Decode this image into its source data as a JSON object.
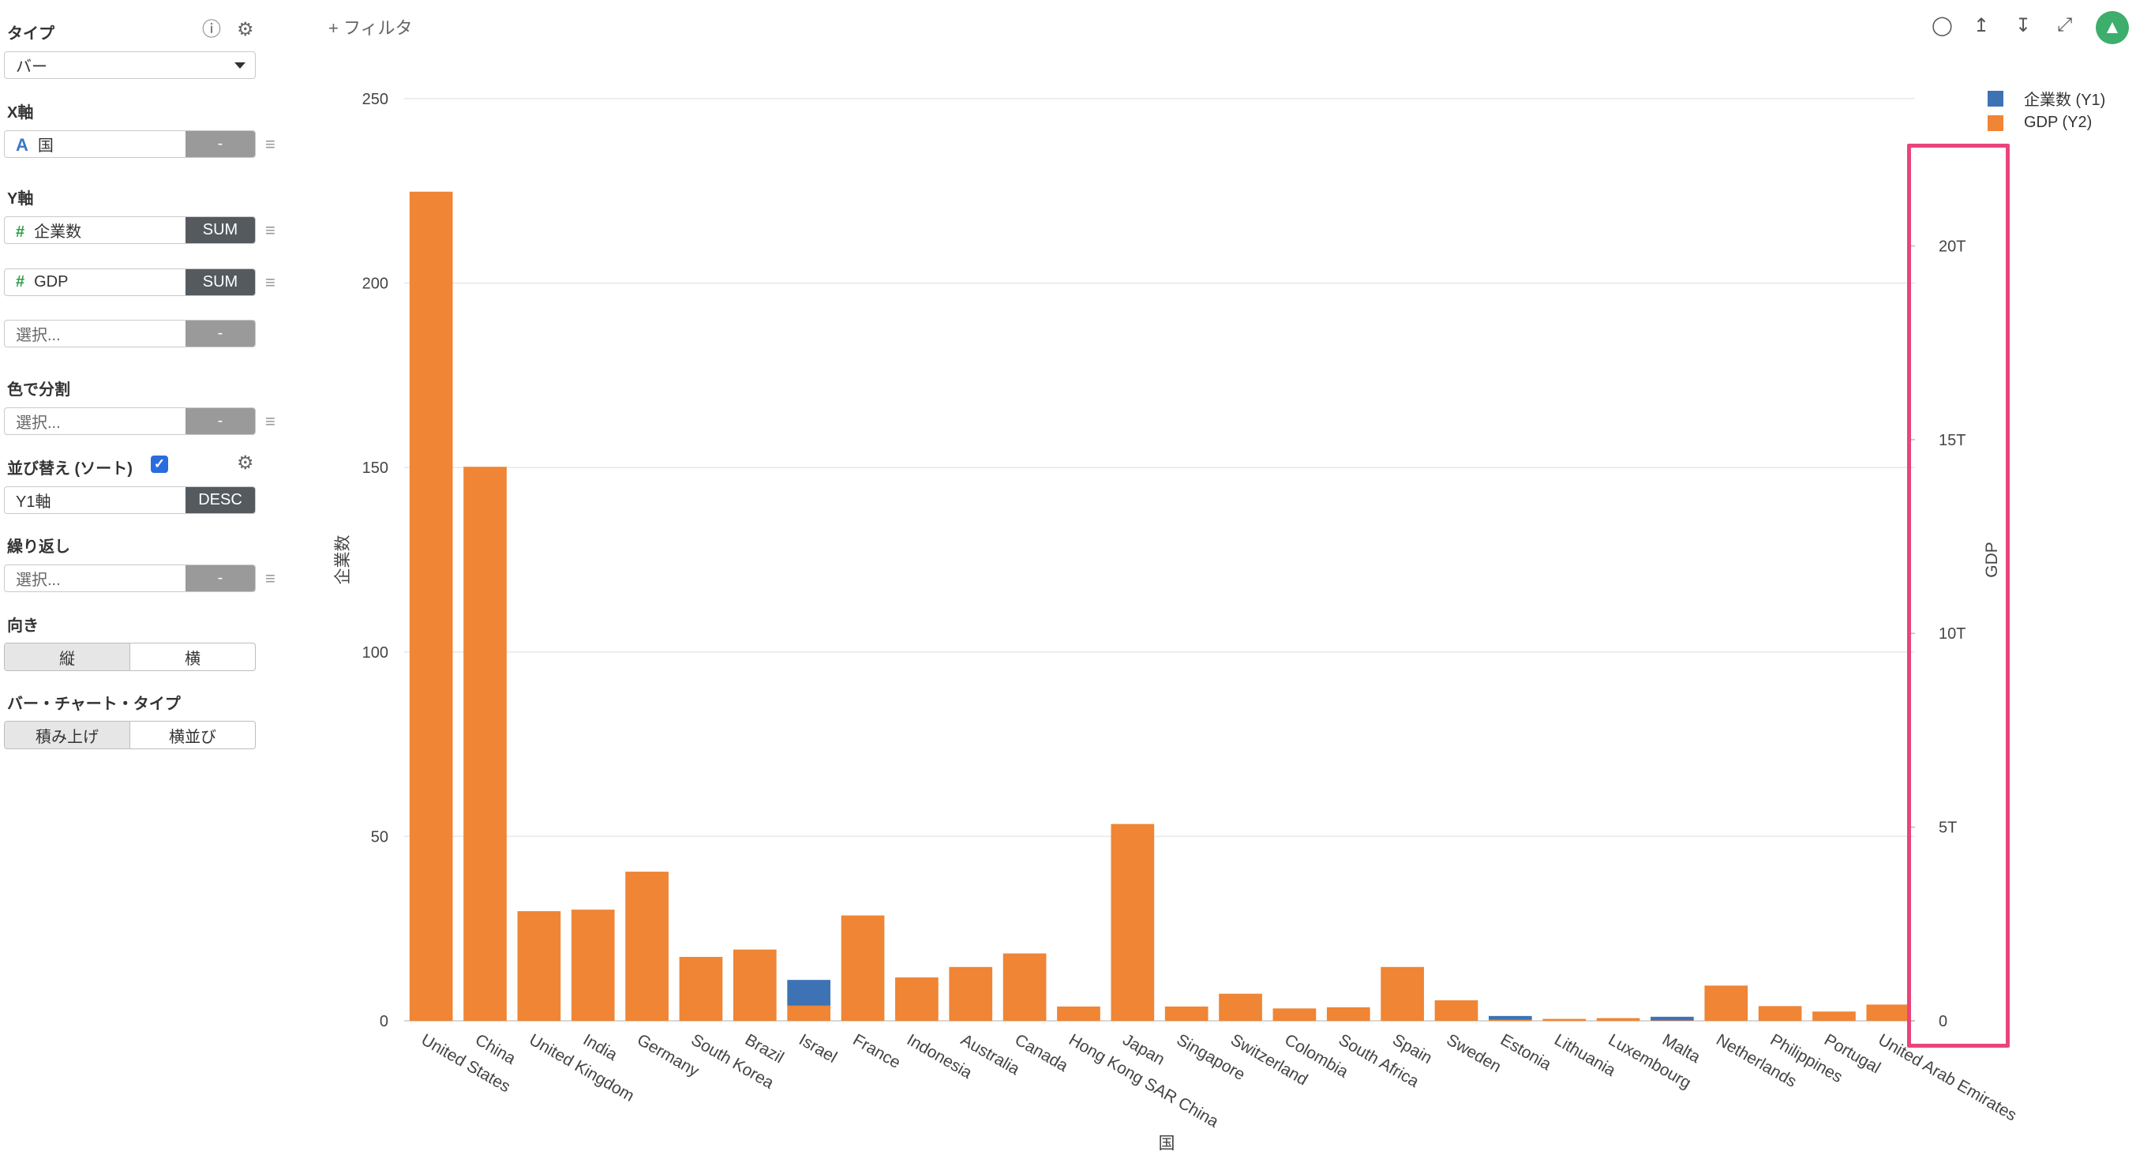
{
  "panel": {
    "type": {
      "label": "タイプ",
      "value": "バー"
    },
    "xaxis": {
      "label": "X軸",
      "field": "国",
      "agg": "-"
    },
    "yaxis": {
      "label": "Y軸",
      "fields": [
        {
          "name": "企業数",
          "agg": "SUM"
        },
        {
          "name": "GDP",
          "agg": "SUM"
        }
      ],
      "add_placeholder": "選択...",
      "add_agg": "-"
    },
    "color_split": {
      "label": "色で分割",
      "placeholder": "選択...",
      "agg": "-"
    },
    "sort": {
      "label": "並び替え (ソート)",
      "checked": true,
      "field": "Y1軸",
      "order": "DESC"
    },
    "repeat": {
      "label": "繰り返し",
      "placeholder": "選択...",
      "agg": "-"
    },
    "orientation": {
      "label": "向き",
      "options": [
        "縦",
        "横"
      ],
      "selected": "縦"
    },
    "bar_type": {
      "label": "バー・チャート・タイプ",
      "options": [
        "積み上げ",
        "横並び"
      ],
      "selected": "積み上げ"
    }
  },
  "topbar": {
    "filter_label": "+ フィルタ",
    "icons": [
      "comment-icon",
      "upload-icon",
      "download-icon",
      "expand-icon",
      "pin-icon"
    ]
  },
  "colors": {
    "y1": "#3d73b4",
    "y2": "#ef8535",
    "highlight": "#e8457a",
    "pin": "#3dae6b"
  },
  "chart_data": {
    "type": "bar",
    "stacked": true,
    "categories": [
      "United States",
      "China",
      "United Kingdom",
      "India",
      "Germany",
      "South Korea",
      "Brazil",
      "Israel",
      "France",
      "Indonesia",
      "Australia",
      "Canada",
      "Hong Kong SAR China",
      "Japan",
      "Singapore",
      "Switzerland",
      "Colombia",
      "South Africa",
      "Spain",
      "Sweden",
      "Estonia",
      "Lithuania",
      "Luxembourg",
      "Malta",
      "Netherlands",
      "Philippines",
      "Portugal",
      "United Arab Emirates"
    ],
    "series": [
      {
        "name": "企業数 (Y1)",
        "axis": "y1",
        "values": [
          0,
          0,
          0,
          0,
          0,
          0,
          0,
          7,
          0,
          0,
          0,
          0,
          0,
          0,
          0,
          0,
          0,
          0,
          0,
          0,
          1,
          0,
          0,
          1,
          0,
          0,
          0,
          0
        ]
      },
      {
        "name": "GDP (Y2)",
        "axis": "y2",
        "values": [
          21.4,
          14.3,
          2.83,
          2.87,
          3.85,
          1.65,
          1.84,
          0.39,
          2.72,
          1.12,
          1.39,
          1.74,
          0.37,
          5.08,
          0.37,
          0.7,
          0.32,
          0.35,
          1.39,
          0.53,
          0.03,
          0.05,
          0.07,
          0.01,
          0.91,
          0.38,
          0.24,
          0.42
        ]
      }
    ],
    "ylabel": "企業数",
    "y2label": "GDP",
    "xlabel": "国",
    "ylim": [
      0,
      250
    ],
    "y2lim": [
      0,
      23.8
    ],
    "yticks": [
      "0",
      "50",
      "100",
      "150",
      "200",
      "250"
    ],
    "y2ticks": [
      "0",
      "5T",
      "10T",
      "15T",
      "20T"
    ],
    "grid": true,
    "legend": "top-right"
  }
}
